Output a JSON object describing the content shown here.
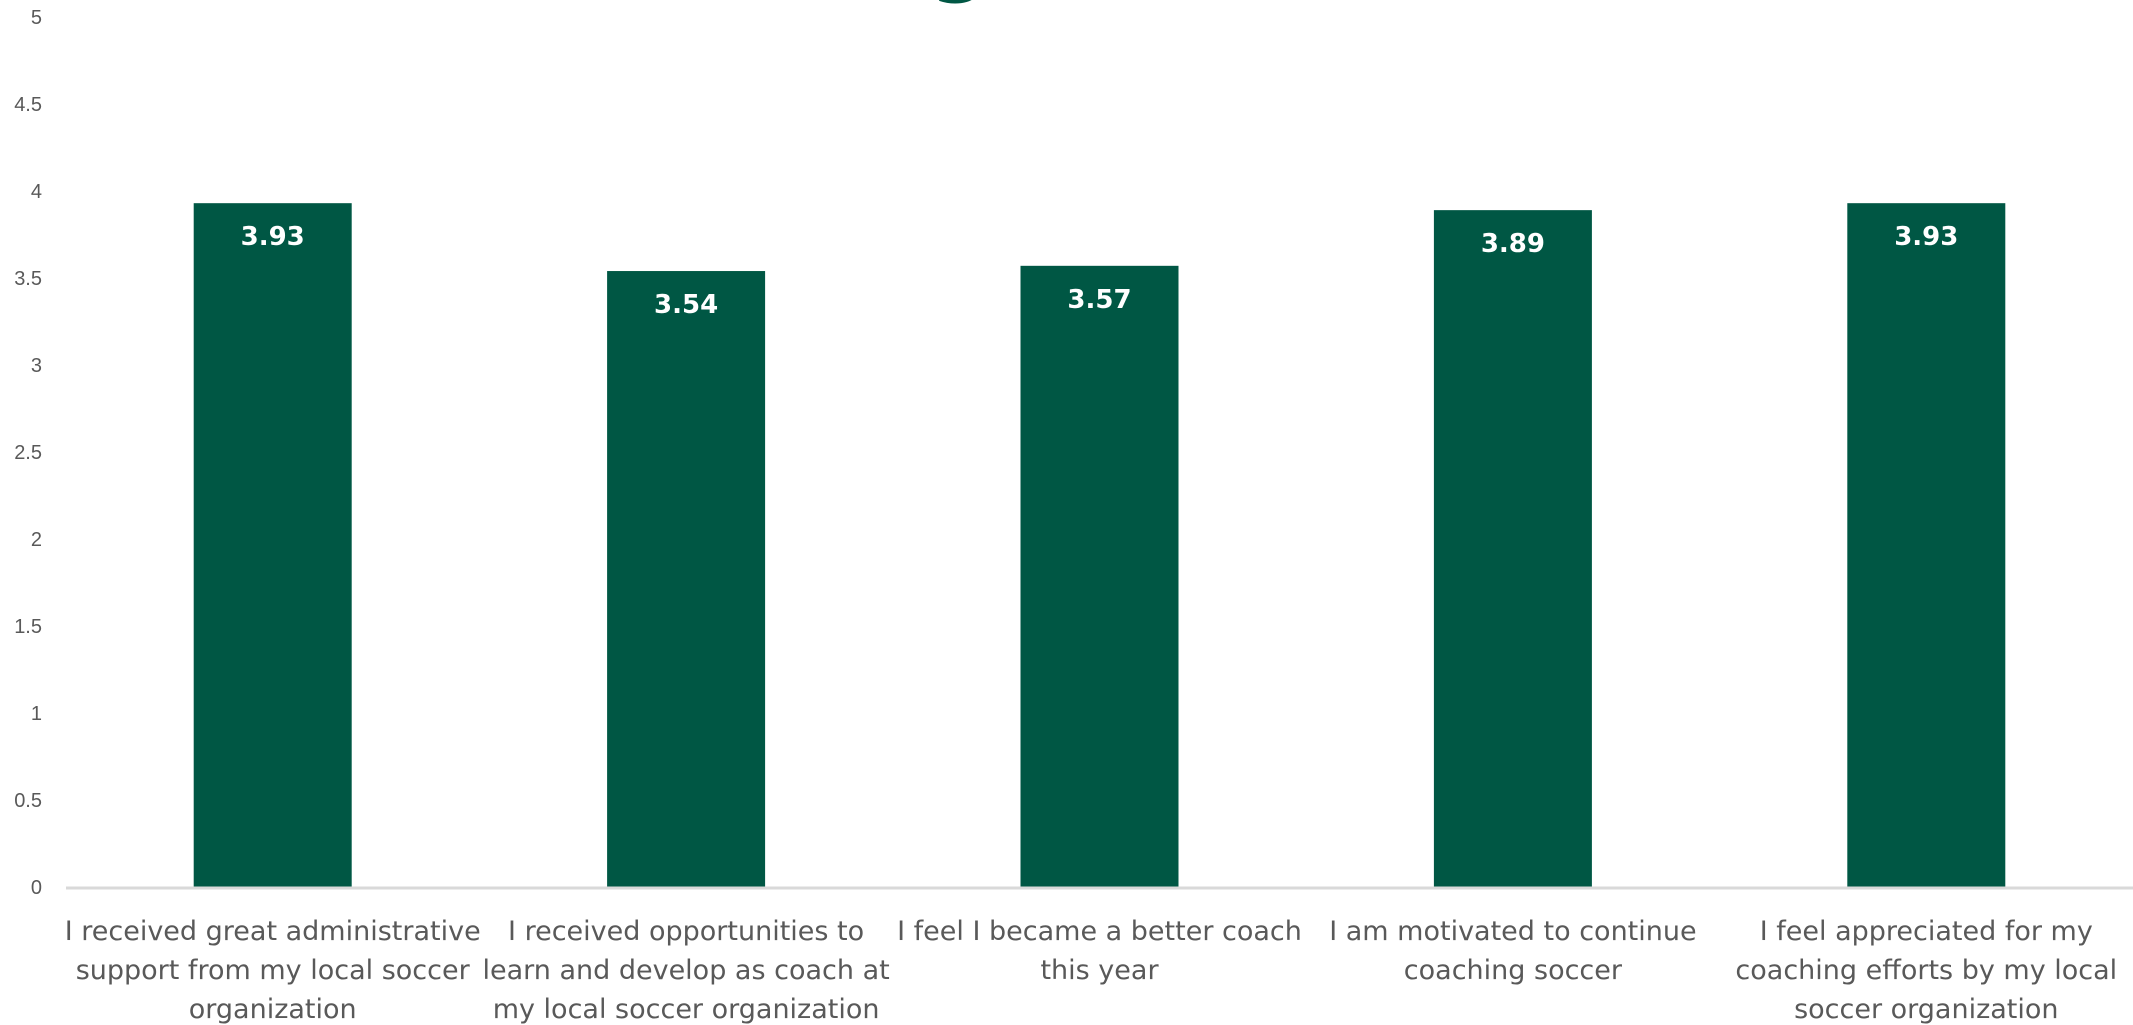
{
  "chart_data": {
    "type": "bar",
    "title": "",
    "categories": [
      "I received great administrative support from my local soccer organization",
      "I received opportunities to learn and develop as coach at my local soccer organization",
      "I feel I became a better coach this year",
      "I am motivated to continue coaching soccer",
      "I feel appreciated for my coaching efforts by my local soccer organization"
    ],
    "category_lines": [
      [
        "I received great administrative",
        "support from my local soccer",
        "organization"
      ],
      [
        "I received opportunities to",
        "learn and develop as coach at",
        "my local soccer organization"
      ],
      [
        "I feel I became a better coach",
        "this year"
      ],
      [
        "I am motivated to continue",
        "coaching soccer"
      ],
      [
        "I feel appreciated for my",
        "coaching efforts by my local",
        "soccer organization"
      ]
    ],
    "values": [
      3.93,
      3.54,
      3.57,
      3.89,
      3.93
    ],
    "data_labels": [
      "3.93",
      "3.54",
      "3.57",
      "3.89",
      "3.93"
    ],
    "ylim": [
      0,
      5
    ],
    "yticks": [
      "0",
      "0.5",
      "1",
      "1.5",
      "2",
      "2.5",
      "3",
      "3.5",
      "4",
      "4.5",
      "5"
    ],
    "xlabel": "",
    "ylabel": "",
    "grid": false,
    "legend": "none",
    "colors": {
      "bar": "#005744",
      "axis": "#d9d9d9",
      "tick_text": "#595959",
      "data_label_text": "#ffffff",
      "title": "#005744"
    }
  }
}
